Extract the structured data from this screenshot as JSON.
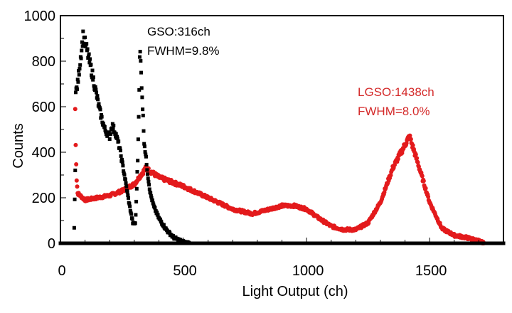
{
  "chart_data": {
    "type": "scatter",
    "title": "",
    "xlabel": "Light Output (ch)",
    "ylabel": "Counts",
    "xlim": [
      0,
      1800
    ],
    "ylim": [
      0,
      1000
    ],
    "xticks": [
      0,
      500,
      1000,
      1500
    ],
    "yticks": [
      0,
      200,
      400,
      600,
      800,
      1000
    ],
    "grid": false,
    "series": [
      {
        "name": "GSO",
        "color": "#000000",
        "marker": "square",
        "x": [
          0,
          55,
          60,
          62,
          70,
          80,
          92,
          105,
          130,
          160,
          180,
          200,
          210,
          225,
          240,
          260,
          280,
          295,
          305,
          315,
          323,
          330,
          340,
          355,
          365,
          380,
          400,
          430,
          460,
          500,
          530,
          1800
        ],
        "y": [
          0,
          0,
          330,
          660,
          700,
          800,
          910,
          860,
          740,
          580,
          500,
          470,
          520,
          480,
          420,
          300,
          170,
          85,
          90,
          400,
          860,
          700,
          450,
          300,
          220,
          160,
          110,
          60,
          25,
          5,
          0,
          0
        ]
      },
      {
        "name": "LGSO",
        "color": "#e31a1c",
        "marker": "circle",
        "x": [
          60,
          62,
          66,
          70,
          100,
          150,
          200,
          250,
          300,
          347,
          400,
          500,
          600,
          700,
          780,
          850,
          900,
          950,
          1000,
          1050,
          1100,
          1150,
          1200,
          1250,
          1300,
          1350,
          1418,
          1450,
          1500,
          1550,
          1600,
          1650,
          1700,
          1720
        ],
        "y": [
          590,
          430,
          280,
          220,
          190,
          200,
          210,
          230,
          260,
          330,
          290,
          250,
          200,
          150,
          130,
          150,
          165,
          165,
          150,
          110,
          75,
          60,
          60,
          90,
          180,
          330,
          470,
          360,
          180,
          65,
          35,
          25,
          10,
          0
        ]
      }
    ],
    "annotations": [
      {
        "series": "GSO",
        "lines": [
          "GSO:316ch",
          "FWHM=9.8%"
        ],
        "color": "#000000"
      },
      {
        "series": "LGSO",
        "lines": [
          "LGSO:1438ch",
          "FWHM=8.0%"
        ],
        "color": "#d42a2a"
      }
    ]
  }
}
